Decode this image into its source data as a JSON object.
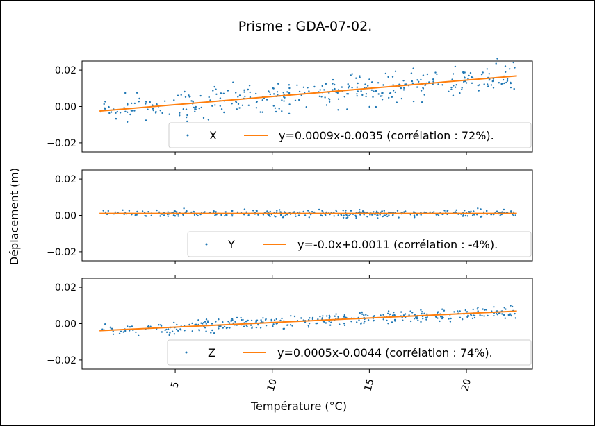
{
  "figure": {
    "title": "Prisme : GDA-07-02.",
    "ylabel": "Déplacement (m)",
    "xlabel": "Température (°C)"
  },
  "chart_data": [
    {
      "type": "scatter",
      "title": "Prisme : GDA-07-02.",
      "xlabel": "Température (°C)",
      "ylabel": "Déplacement (m)",
      "xlim": [
        0.2,
        23.4
      ],
      "ylim": [
        -0.025,
        0.025
      ],
      "yticks": [
        -0.02,
        0.0,
        0.02
      ],
      "ytick_labels": [
        "−0.02",
        "0.00",
        "0.02"
      ],
      "xticks": [
        5,
        10,
        15,
        20
      ],
      "xtick_labels": [
        "5",
        "10",
        "15",
        "20"
      ],
      "grid": false,
      "legend_position": "lower right",
      "series": [
        {
          "name": "X",
          "kind": "scatter",
          "color": "#1f77b4",
          "x_range": [
            1.1,
            22.6
          ],
          "approx_points": 360
        },
        {
          "name": "y=0.0009x-0.0035 (corrélation : 72%).",
          "kind": "line",
          "color": "#ff7f0e",
          "slope": 0.0009,
          "intercept": -0.0035
        }
      ]
    },
    {
      "type": "scatter",
      "xlim": [
        0.2,
        23.4
      ],
      "ylim": [
        -0.025,
        0.025
      ],
      "yticks": [
        -0.02,
        0.0,
        0.02
      ],
      "ytick_labels": [
        "−0.02",
        "0.00",
        "0.02"
      ],
      "xticks": [
        5,
        10,
        15,
        20
      ],
      "grid": false,
      "legend_position": "lower right",
      "series": [
        {
          "name": "Y",
          "kind": "scatter",
          "color": "#1f77b4",
          "x_range": [
            1.1,
            22.6
          ],
          "approx_points": 360
        },
        {
          "name": "y=-0.0x+0.0011 (corrélation : -4%).",
          "kind": "line",
          "color": "#ff7f0e",
          "slope": 0.0,
          "intercept": 0.0011
        }
      ]
    },
    {
      "type": "scatter",
      "xlabel": "Température (°C)",
      "xlim": [
        0.2,
        23.4
      ],
      "ylim": [
        -0.025,
        0.025
      ],
      "yticks": [
        -0.02,
        0.0,
        0.02
      ],
      "ytick_labels": [
        "−0.02",
        "0.00",
        "0.02"
      ],
      "xticks": [
        5,
        10,
        15,
        20
      ],
      "xtick_labels": [
        "5",
        "10",
        "15",
        "20"
      ],
      "grid": false,
      "legend_position": "lower right",
      "series": [
        {
          "name": "Z",
          "kind": "scatter",
          "color": "#1f77b4",
          "x_range": [
            1.1,
            22.6
          ],
          "approx_points": 360
        },
        {
          "name": "y=0.0005x-0.0044 (corrélation : 74%).",
          "kind": "line",
          "color": "#ff7f0e",
          "slope": 0.0005,
          "intercept": -0.0044
        }
      ]
    }
  ]
}
